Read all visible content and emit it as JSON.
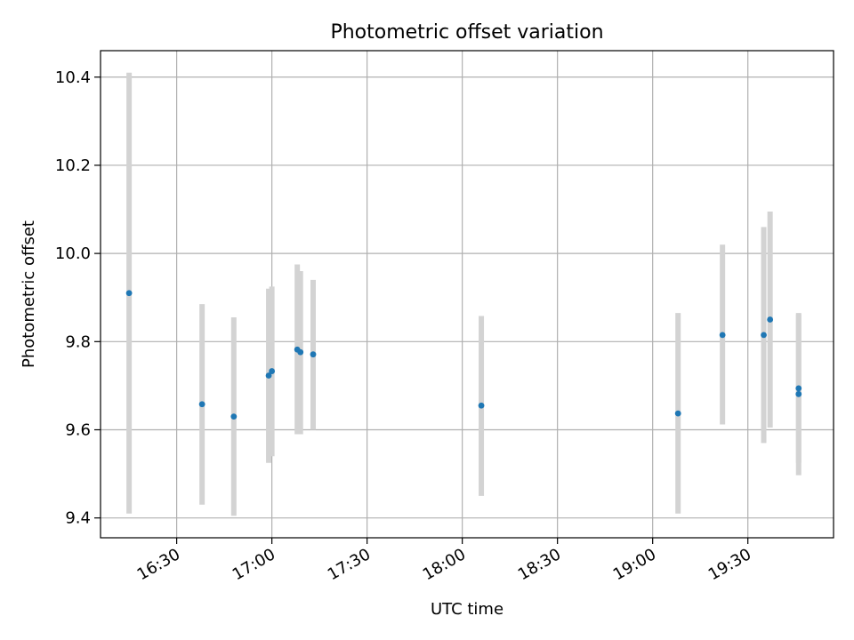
{
  "chart_data": {
    "type": "scatter",
    "title": "Photometric offset variation",
    "xlabel": "UTC time",
    "ylabel": "Photometric offset",
    "x_scale": "time",
    "xlim": [
      "16:06",
      "19:57"
    ],
    "ylim": [
      9.355,
      10.46
    ],
    "x_ticks": [
      "16:30",
      "17:00",
      "17:30",
      "18:00",
      "18:30",
      "19:00",
      "19:30"
    ],
    "y_ticks": [
      9.4,
      9.6,
      9.8,
      10.0,
      10.2,
      10.4
    ],
    "y_tick_labels": [
      "9.4",
      "9.6",
      "9.8",
      "10.0",
      "10.2",
      "10.4"
    ],
    "grid": true,
    "colors": {
      "marker": "#1f77b4",
      "error_bar": "#d3d3d3"
    },
    "points": [
      {
        "x": "16:15",
        "y": 9.91,
        "ylow": 9.41,
        "yhigh": 10.41
      },
      {
        "x": "16:38",
        "y": 9.658,
        "ylow": 9.43,
        "yhigh": 9.885
      },
      {
        "x": "16:48",
        "y": 9.63,
        "ylow": 9.405,
        "yhigh": 9.855
      },
      {
        "x": "16:59",
        "y": 9.723,
        "ylow": 9.525,
        "yhigh": 9.92
      },
      {
        "x": "17:00",
        "y": 9.733,
        "ylow": 9.54,
        "yhigh": 9.925
      },
      {
        "x": "17:08",
        "y": 9.782,
        "ylow": 9.59,
        "yhigh": 9.975
      },
      {
        "x": "17:09",
        "y": 9.776,
        "ylow": 9.59,
        "yhigh": 9.96
      },
      {
        "x": "17:13",
        "y": 9.771,
        "ylow": 9.6,
        "yhigh": 9.94
      },
      {
        "x": "18:06",
        "y": 9.655,
        "ylow": 9.45,
        "yhigh": 9.858
      },
      {
        "x": "19:08",
        "y": 9.637,
        "ylow": 9.41,
        "yhigh": 9.865
      },
      {
        "x": "19:22",
        "y": 9.815,
        "ylow": 9.612,
        "yhigh": 10.02
      },
      {
        "x": "19:35",
        "y": 9.815,
        "ylow": 9.57,
        "yhigh": 10.06
      },
      {
        "x": "19:37",
        "y": 9.85,
        "ylow": 9.605,
        "yhigh": 10.095
      },
      {
        "x": "19:46",
        "y": 9.694,
        "ylow": 9.525,
        "yhigh": 9.865
      },
      {
        "x": "19:46",
        "y": 9.681,
        "ylow": 9.497,
        "yhigh": 9.862
      }
    ]
  }
}
